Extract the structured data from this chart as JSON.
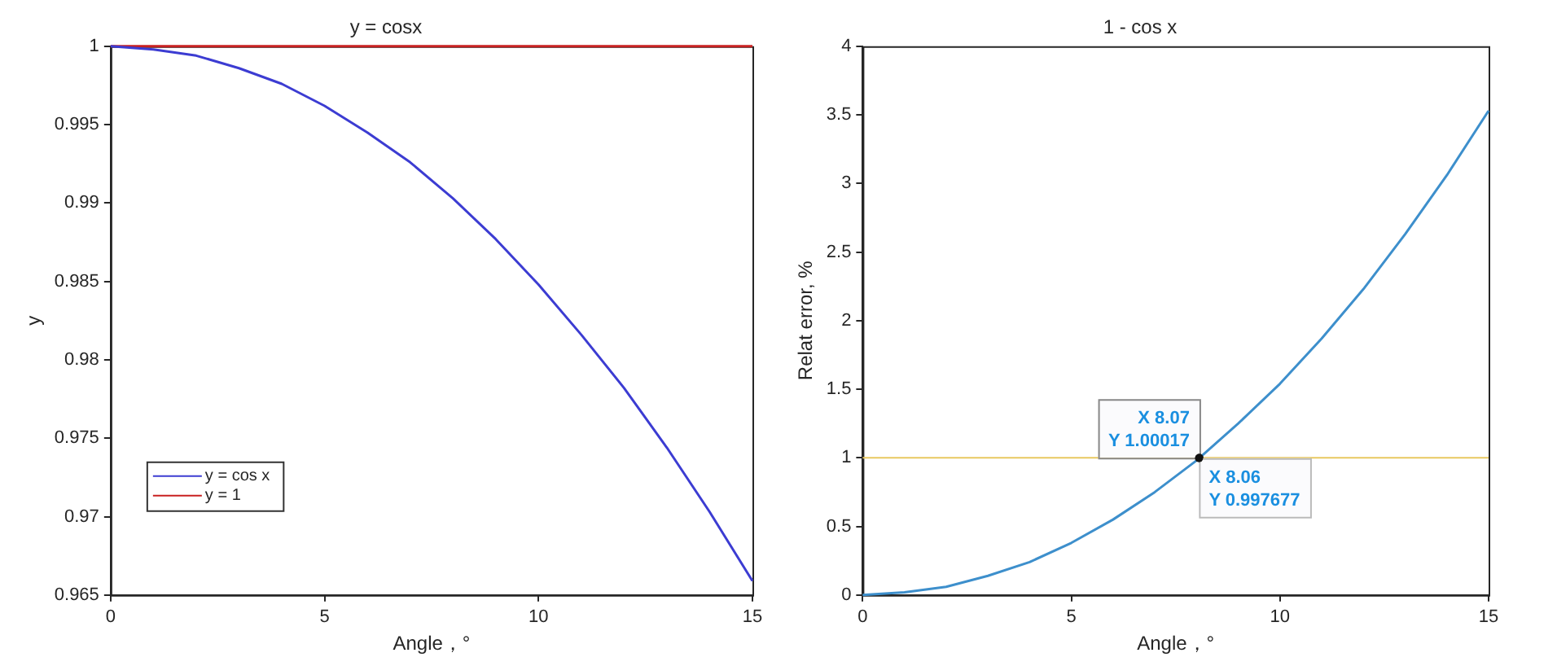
{
  "chart_data": [
    {
      "type": "line",
      "title": "y = cosx",
      "xlabel": "Angle，°",
      "ylabel": "y",
      "x": [
        0,
        1,
        2,
        3,
        4,
        5,
        6,
        7,
        8,
        9,
        10,
        11,
        12,
        13,
        14,
        15
      ],
      "series": [
        {
          "name": "y = cos x",
          "color": "#3c3cd2",
          "values": [
            1,
            0.9998,
            0.9994,
            0.9986,
            0.9976,
            0.9962,
            0.9945,
            0.9926,
            0.9903,
            0.9877,
            0.9848,
            0.9816,
            0.9782,
            0.9744,
            0.9703,
            0.9659
          ]
        },
        {
          "name": "y = 1",
          "color": "#c82020",
          "values": [
            1,
            1,
            1,
            1,
            1,
            1,
            1,
            1,
            1,
            1,
            1,
            1,
            1,
            1,
            1,
            1
          ]
        }
      ],
      "xlim": [
        0,
        15
      ],
      "xticks": [
        0,
        5,
        10,
        15
      ],
      "ylim": [
        0.965,
        1
      ],
      "yticks": [
        0.965,
        0.97,
        0.975,
        0.98,
        0.985,
        0.99,
        0.995,
        1
      ],
      "grid": false,
      "legend": "bottom left"
    },
    {
      "type": "line",
      "title": "1 - cos x",
      "xlabel": "Angle，°",
      "ylabel": "Relat error, %",
      "x": [
        0,
        1,
        2,
        3,
        4,
        5,
        6,
        7,
        8,
        9,
        10,
        11,
        12,
        13,
        14,
        15
      ],
      "series": [
        {
          "color": "#3d8fcc",
          "values": [
            0,
            0.02,
            0.06,
            0.14,
            0.24,
            0.38,
            0.55,
            0.75,
            0.98,
            1.25,
            1.54,
            1.87,
            2.23,
            2.63,
            3.06,
            3.53
          ]
        }
      ],
      "ref_lines": [
        {
          "axis": "y",
          "value": 1,
          "color": "#e8c860"
        }
      ],
      "annotations": [
        {
          "text": "X 8.07\nY 1.00017",
          "x": 8.07,
          "y": 1.00017
        },
        {
          "text": "X 8.06\nY 0.997677",
          "x": 8.06,
          "y": 0.997677
        }
      ],
      "xlim": [
        0,
        15
      ],
      "xticks": [
        0,
        5,
        10,
        15
      ],
      "ylim": [
        0,
        4
      ],
      "yticks": [
        0,
        0.5,
        1,
        1.5,
        2,
        2.5,
        3,
        3.5,
        4
      ],
      "grid": false,
      "legend": false
    }
  ]
}
